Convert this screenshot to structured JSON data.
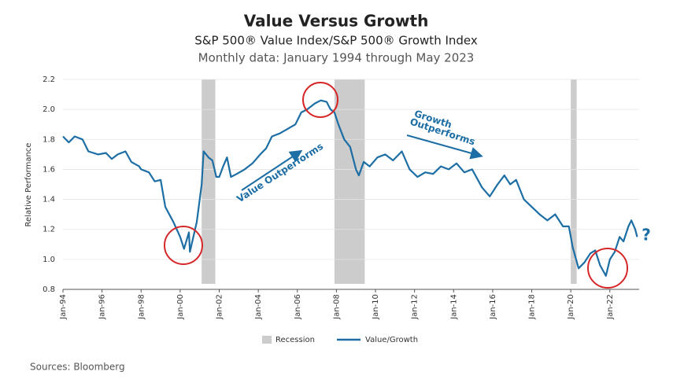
{
  "chart_data": {
    "type": "line",
    "title": "Value Versus Growth",
    "subtitle": "S&P 500® Value Index/S&P 500® Growth Index",
    "note": "Monthly data: January 1994 through May 2023",
    "y_label": "Relative Performance",
    "source": "Sources: Bloomberg",
    "annotations": [
      "Value Outperforms",
      "Growth",
      "Outperforms",
      "?"
    ],
    "x": [
      1994.0,
      1994.3,
      1994.6,
      1995.0,
      1995.3,
      1995.8,
      1996.2,
      1996.5,
      1996.8,
      1997.2,
      1997.5,
      1997.9,
      1998.0,
      1998.4,
      1998.7,
      1999.0,
      1999.24,
      1999.65,
      2000.0,
      2000.2,
      2000.45,
      2000.5,
      2000.85,
      2001.1,
      2001.2,
      2001.45,
      2001.65,
      2001.85,
      2002.0,
      2002.2,
      2002.4,
      2002.6,
      2002.9,
      2003.3,
      2003.7,
      2004.1,
      2004.4,
      2004.7,
      2005.1,
      2005.5,
      2005.9,
      2006.2,
      2006.5,
      2006.9,
      2007.2,
      2007.5,
      2007.7,
      2007.9,
      2008.1,
      2008.4,
      2008.7,
      2009.0,
      2009.15,
      2009.4,
      2009.7,
      2010.1,
      2010.5,
      2010.9,
      2011.35,
      2011.75,
      2012.15,
      2012.55,
      2012.95,
      2013.35,
      2013.75,
      2014.15,
      2014.55,
      2014.95,
      2015.45,
      2015.85,
      2016.25,
      2016.6,
      2016.9,
      2017.2,
      2017.6,
      2018.0,
      2018.4,
      2018.8,
      2019.2,
      2019.6,
      2019.9,
      2020.1,
      2020.4,
      2020.7,
      2021.0,
      2021.25,
      2021.5,
      2021.8,
      2022.0,
      2022.25,
      2022.5,
      2022.7,
      2022.95,
      2023.1,
      2023.3,
      2023.4
    ],
    "series": [
      {
        "name": "Value/Growth",
        "color": "#1c6ea4",
        "values": [
          1.82,
          1.78,
          1.82,
          1.8,
          1.72,
          1.7,
          1.71,
          1.67,
          1.7,
          1.72,
          1.65,
          1.62,
          1.6,
          1.58,
          1.52,
          1.53,
          1.35,
          1.25,
          1.15,
          1.07,
          1.18,
          1.05,
          1.25,
          1.5,
          1.72,
          1.68,
          1.66,
          1.55,
          1.55,
          1.62,
          1.68,
          1.55,
          1.57,
          1.6,
          1.64,
          1.7,
          1.74,
          1.82,
          1.84,
          1.87,
          1.9,
          1.98,
          2.0,
          2.04,
          2.06,
          2.05,
          2.0,
          1.98,
          1.9,
          1.8,
          1.75,
          1.6,
          1.56,
          1.65,
          1.62,
          1.68,
          1.7,
          1.66,
          1.72,
          1.6,
          1.55,
          1.58,
          1.57,
          1.62,
          1.6,
          1.64,
          1.58,
          1.6,
          1.48,
          1.42,
          1.5,
          1.56,
          1.5,
          1.53,
          1.4,
          1.35,
          1.3,
          1.26,
          1.3,
          1.22,
          1.22,
          1.08,
          0.94,
          0.98,
          1.04,
          1.06,
          0.96,
          0.89,
          1.0,
          1.05,
          1.15,
          1.12,
          1.22,
          1.26,
          1.2,
          1.15
        ]
      }
    ],
    "recessions": {
      "name": "Recession",
      "color": "#cccccc",
      "ranges": [
        [
          2001.1,
          2001.8
        ],
        [
          2007.9,
          2009.45
        ],
        [
          2020.0,
          2020.3
        ]
      ]
    },
    "xlim": [
      1994,
      2023.5
    ],
    "xticks": [
      {
        "value": 1994,
        "label": "Jan-94"
      },
      {
        "value": 1996,
        "label": "Jan-96"
      },
      {
        "value": 1998,
        "label": "Jan-98"
      },
      {
        "value": 2000,
        "label": "Jan-00"
      },
      {
        "value": 2002,
        "label": "Jan-02"
      },
      {
        "value": 2004,
        "label": "Jan-04"
      },
      {
        "value": 2006,
        "label": "Jan-06"
      },
      {
        "value": 2008,
        "label": "Jan-08"
      },
      {
        "value": 2010,
        "label": "Jan-10"
      },
      {
        "value": 2012,
        "label": "Jan-12"
      },
      {
        "value": 2014,
        "label": "Jan-14"
      },
      {
        "value": 2016,
        "label": "Jan-16"
      },
      {
        "value": 2018,
        "label": "Jan-18"
      },
      {
        "value": 2020,
        "label": "Jan-20"
      },
      {
        "value": 2022,
        "label": "Jan-22"
      }
    ],
    "ylim": [
      0.8,
      2.2
    ],
    "yticks": [
      0.8,
      {
        "value": 1,
        "label": "1.0"
      },
      1.2,
      1.4,
      1.6,
      1.8,
      {
        "value": 2,
        "label": "2.0"
      },
      2.2
    ],
    "grid": true
  }
}
